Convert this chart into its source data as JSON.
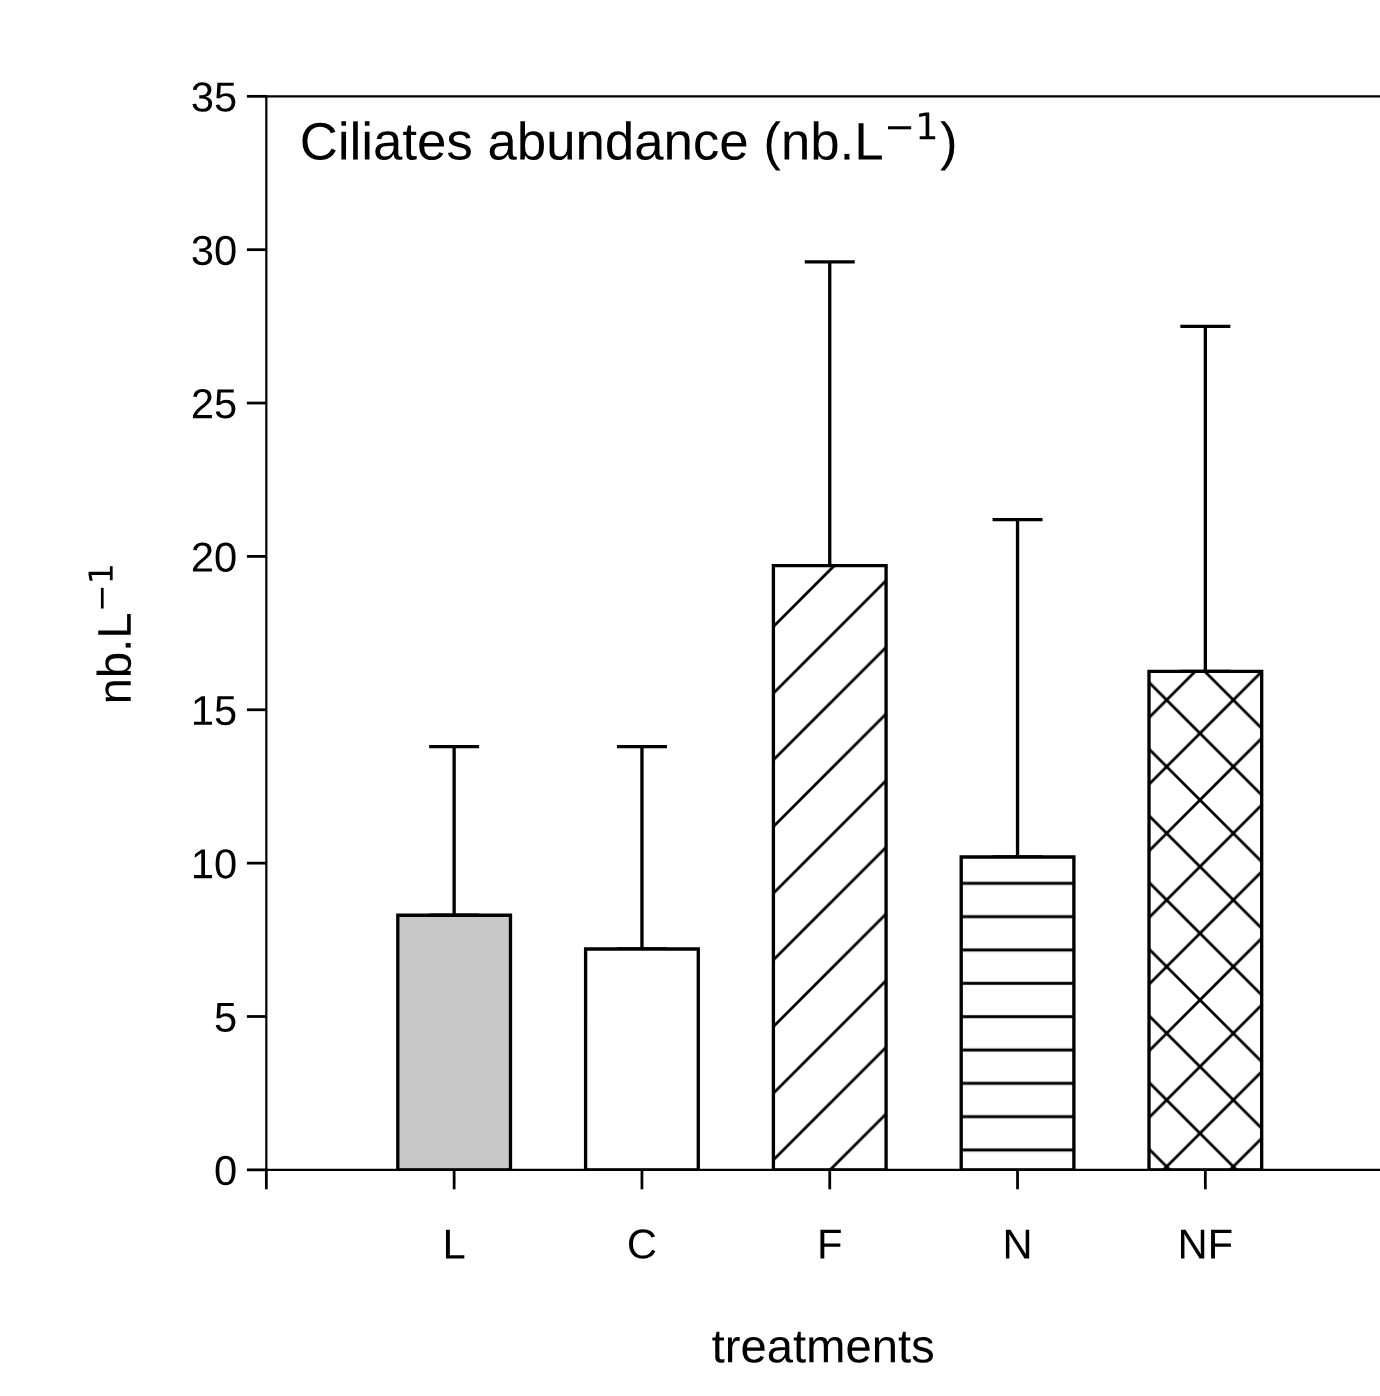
{
  "chart_data": {
    "type": "bar",
    "title": "Ciliates abundance (nb.L$^{−1}$)",
    "xlabel": "treatments",
    "ylabel": "nb.L$^{−1}$",
    "categories": [
      "L",
      "C",
      "F",
      "N",
      "NF"
    ],
    "values": [
      8.3,
      7.2,
      19.7,
      10.2,
      16.25
    ],
    "errors": [
      [
        8.3,
        13.8
      ],
      [
        7.2,
        13.8
      ],
      [
        19.7,
        29.6
      ],
      [
        10.2,
        21.2
      ],
      [
        16.25,
        27.5
      ]
    ],
    "colors": [
      "#c8c8c8",
      "#ffffff",
      "#ffffff",
      "#ffffff",
      "#ffffff"
    ],
    "ylim": [
      0,
      35
    ],
    "yticks": [
      0,
      5,
      10,
      15,
      20,
      25,
      30,
      35
    ],
    "grid": false,
    "legend": false
  }
}
